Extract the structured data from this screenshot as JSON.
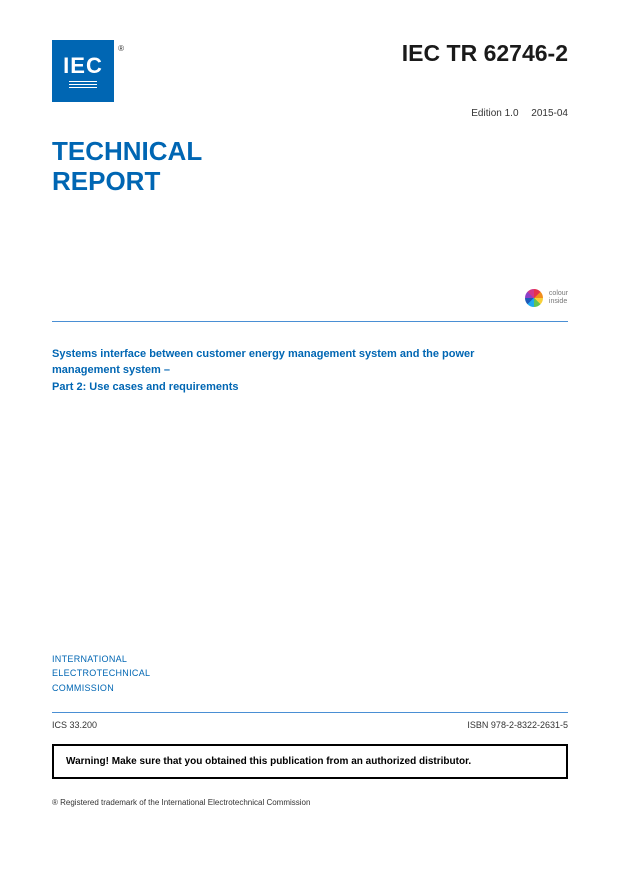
{
  "logo": {
    "text": "IEC",
    "registered": "®"
  },
  "doc_id": "IEC TR 62746-2",
  "edition": {
    "label": "Edition 1.0",
    "date": "2015-04"
  },
  "report_heading": {
    "line1": "TECHNICAL",
    "line2": "REPORT"
  },
  "colour_badge": {
    "line1": "colour",
    "line2": "inside"
  },
  "title": {
    "line1": "Systems interface between customer energy management system and the power",
    "line2": "management system –",
    "line3": "Part 2: Use cases and requirements"
  },
  "org": {
    "line1": "INTERNATIONAL",
    "line2": "ELECTROTECHNICAL",
    "line3": "COMMISSION"
  },
  "meta": {
    "ics": "ICS 33.200",
    "isbn": "ISBN 978-2-8322-2631-5"
  },
  "warning": "Warning! Make sure that you obtained this publication from an authorized distributor.",
  "trademark": "® Registered trademark of the International Electrotechnical Commission",
  "colors": {
    "brand_blue": "#0066b3",
    "divider_blue": "#4a8fd4",
    "text_dark": "#1a1a1a"
  }
}
